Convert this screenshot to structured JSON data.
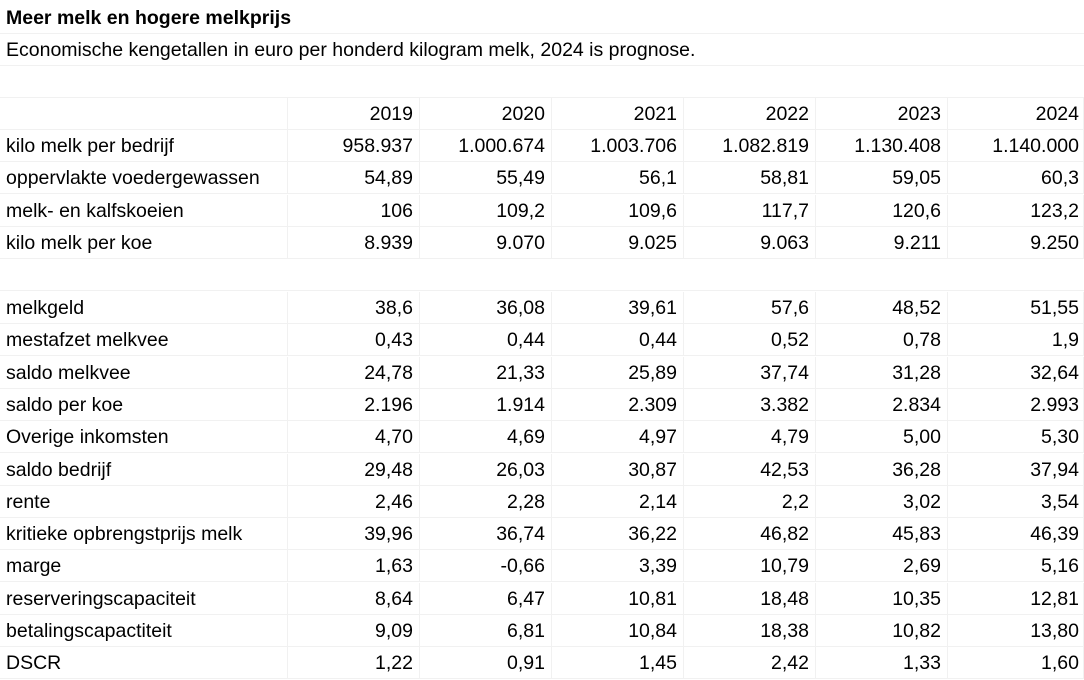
{
  "sheet": {
    "title": "Meer melk en hogere melkprijs",
    "subtitle": "Economische kengetallen in euro per honderd kilogram melk, 2024 is prognose.",
    "years": [
      "2019",
      "2020",
      "2021",
      "2022",
      "2023",
      "2024"
    ],
    "group1": [
      {
        "label": "kilo melk per bedrijf",
        "values": [
          "958.937",
          "1.000.674",
          "1.003.706",
          "1.082.819",
          "1.130.408",
          "1.140.000"
        ]
      },
      {
        "label": "oppervlakte voedergewassen",
        "values": [
          "54,89",
          "55,49",
          "56,1",
          "58,81",
          "59,05",
          "60,3"
        ]
      },
      {
        "label": "melk- en kalfskoeien",
        "values": [
          "106",
          "109,2",
          "109,6",
          "117,7",
          "120,6",
          "123,2"
        ]
      },
      {
        "label": "kilo melk per koe",
        "values": [
          "8.939",
          "9.070",
          "9.025",
          "9.063",
          "9.211",
          "9.250"
        ]
      }
    ],
    "group2": [
      {
        "label": "melkgeld",
        "values": [
          "38,6",
          "36,08",
          "39,61",
          "57,6",
          "48,52",
          "51,55"
        ]
      },
      {
        "label": "mestafzet melkvee",
        "values": [
          "0,43",
          "0,44",
          "0,44",
          "0,52",
          "0,78",
          "1,9"
        ]
      },
      {
        "label": "saldo melkvee",
        "values": [
          "24,78",
          "21,33",
          "25,89",
          "37,74",
          "31,28",
          "32,64"
        ]
      },
      {
        "label": "saldo per koe",
        "values": [
          "2.196",
          "1.914",
          "2.309",
          "3.382",
          "2.834",
          "2.993"
        ]
      },
      {
        "label": "Overige inkomsten",
        "values": [
          "4,70",
          "4,69",
          "4,97",
          "4,79",
          "5,00",
          "5,30"
        ]
      },
      {
        "label": "saldo bedrijf",
        "values": [
          "29,48",
          "26,03",
          "30,87",
          "42,53",
          "36,28",
          "37,94"
        ]
      },
      {
        "label": "rente",
        "values": [
          "2,46",
          "2,28",
          "2,14",
          "2,2",
          "3,02",
          "3,54"
        ]
      },
      {
        "label": "kritieke opbrengstprijs melk",
        "values": [
          "39,96",
          "36,74",
          "36,22",
          "46,82",
          "45,83",
          "46,39"
        ]
      },
      {
        "label": "marge",
        "values": [
          "1,63",
          "-0,66",
          "3,39",
          "10,79",
          "2,69",
          "5,16"
        ]
      },
      {
        "label": "reserveringscapaciteit",
        "values": [
          "8,64",
          "6,47",
          "10,81",
          "18,48",
          "10,35",
          "12,81"
        ]
      },
      {
        "label": "betalingscapactiteit",
        "values": [
          "9,09",
          "6,81",
          "10,84",
          "18,38",
          "10,82",
          "13,80"
        ]
      },
      {
        "label": "DSCR",
        "values": [
          "1,22",
          "0,91",
          "1,45",
          "2,42",
          "1,33",
          "1,60"
        ]
      }
    ]
  }
}
